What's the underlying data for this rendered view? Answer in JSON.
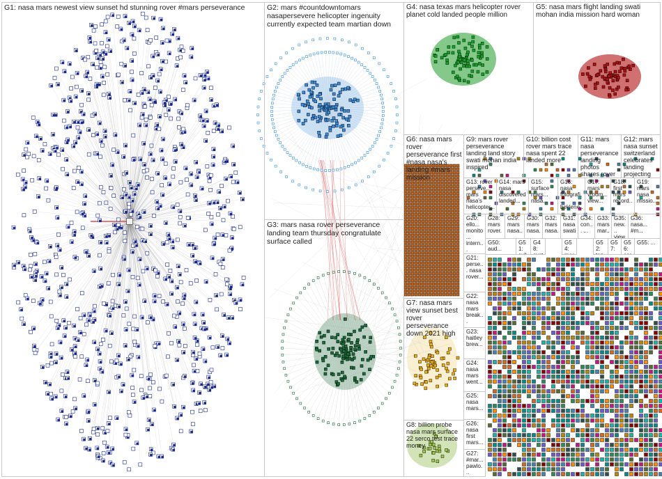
{
  "groups": [
    {
      "id": "G1",
      "label": "G1: nasa mars newest view sunset hd stunning rover #mars perseverance",
      "color": "#1a2a8c"
    },
    {
      "id": "G2",
      "label": "G2: mars #countdowntomars nasapersevere helicopter ingenuity currently expected team martian down",
      "color": "#3b8fd6"
    },
    {
      "id": "G3",
      "label": "G3: mars nasa rover perseverance landing team thursday congratulate surface called",
      "color": "#1e6a3a"
    },
    {
      "id": "G4",
      "label": "G4: nasa texas mars helicopter rover planet cold landed people million",
      "color": "#1f9a2a"
    },
    {
      "id": "G5",
      "label": "G5: nasa mars flight landing swati mohan india mission hard woman",
      "color": "#b01010"
    },
    {
      "id": "G6",
      "label": "G6: nasa mars rover perseverance first #nasa nasa's landing #mars mission",
      "color": "#c8641e"
    },
    {
      "id": "G7",
      "label": "G7: nasa mars view sunset best rover perseverance down 2021 high",
      "color": "#e0b020"
    },
    {
      "id": "G8",
      "label": "G8: billion probe nasa mars surface 22 serco test trace money",
      "color": "#9cc060"
    },
    {
      "id": "G9",
      "label": "G9: mars rover perseverance landing land story swati mohan india inspired",
      "color": "#888"
    },
    {
      "id": "G10",
      "label": "G10: billion cost rover mars trace nasa spent 22 landed more",
      "color": "#888"
    },
    {
      "id": "G11",
      "label": "G11: mars nasa perseverance landing photos shares rover elonmus...",
      "color": "#888"
    },
    {
      "id": "G12",
      "label": "G12: mars nasa sunset switzerland celebrates landing projecting",
      "color": "#888"
    },
    {
      "id": "G13",
      "label": "G13: rover perseve... mars nasa's helicopter...",
      "color": "#888"
    },
    {
      "id": "G14",
      "label": "G14: mars nasa discovered landed...",
      "color": "#888"
    },
    {
      "id": "G15",
      "label": "G15: surface mars... nasa...",
      "color": "#888"
    },
    {
      "id": "G16",
      "label": "G16: nasa fotografi... beklene...",
      "color": "#888"
    },
    {
      "id": "G17",
      "label": "G17: mars vroom... view...",
      "color": "#888"
    },
    {
      "id": "G18",
      "label": "G18: first mars record...",
      "color": "#888"
    },
    {
      "id": "G19",
      "label": "G19: mars nasa missio...",
      "color": "#888"
    },
    {
      "id": "G20",
      "label": "G20: ello... monito... intern... integr...",
      "color": "#888"
    },
    {
      "id": "G21",
      "label": "G21: perse... nasa rover...",
      "color": "#888"
    },
    {
      "id": "G22",
      "label": "G22: nasa mars break...",
      "color": "#888"
    },
    {
      "id": "G23",
      "label": "G23: haitley brew...",
      "color": "#888"
    },
    {
      "id": "G24",
      "label": "G24: nasa mars went...",
      "color": "#888"
    },
    {
      "id": "G25",
      "label": "G25: nasa mars...",
      "color": "#888"
    },
    {
      "id": "G26",
      "label": "G26: nasa first mars...",
      "color": "#888"
    },
    {
      "id": "G27",
      "label": "G27: #mar... pawlo...",
      "color": "#888"
    }
  ],
  "small_labels": [
    "G28: mars rover...",
    "G29: mars nasa...",
    "G30: mars nasa...",
    "G32: mars nasa...",
    "G31: nasa swati...",
    "G34: con... ...",
    "G33: mars mar...",
    "G35: new... view...",
    "G36: nasa... #m...",
    "G50: aud...",
    "G51: sub...",
    "G48: syst...",
    "G54: mar...",
    "G52: tap...",
    "G57: ...",
    "G56: sar...",
    "G55: ..."
  ]
}
